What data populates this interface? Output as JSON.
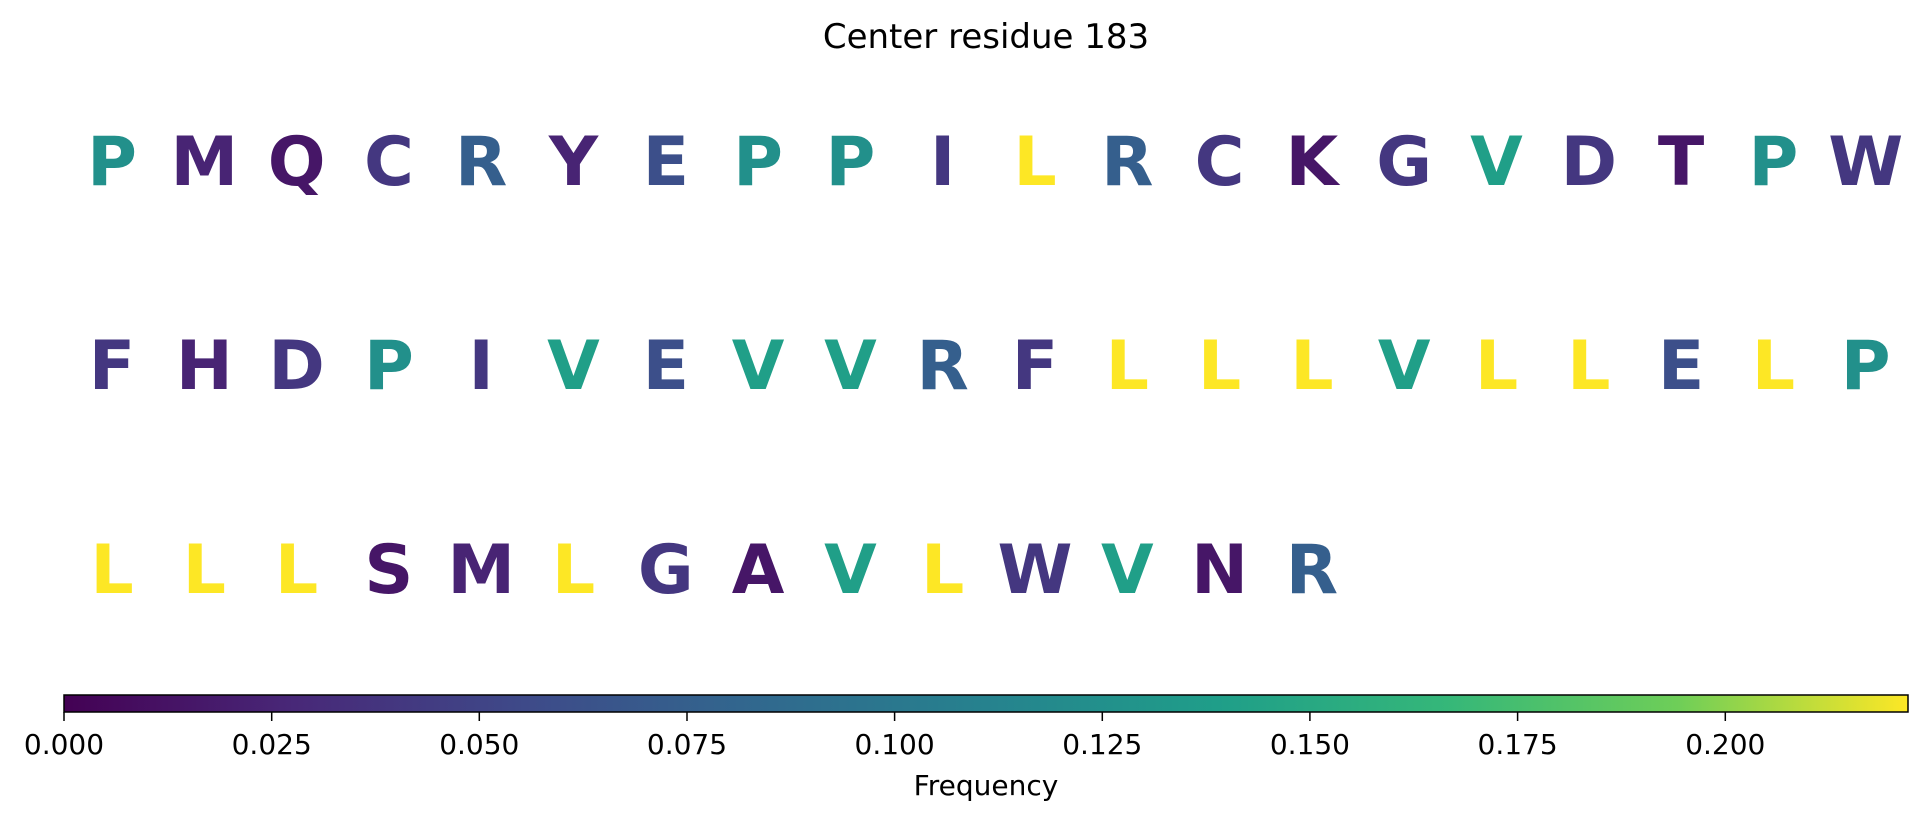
{
  "chart_data": {
    "type": "sequence-logo",
    "title": "Center residue 183",
    "residues": [
      {
        "letter": "P",
        "frequency": 0.125
      },
      {
        "letter": "M",
        "frequency": 0.025
      },
      {
        "letter": "Q",
        "frequency": 0.015
      },
      {
        "letter": "C",
        "frequency": 0.04
      },
      {
        "letter": "R",
        "frequency": 0.075
      },
      {
        "letter": "Y",
        "frequency": 0.025
      },
      {
        "letter": "E",
        "frequency": 0.06
      },
      {
        "letter": "P",
        "frequency": 0.125
      },
      {
        "letter": "P",
        "frequency": 0.125
      },
      {
        "letter": "I",
        "frequency": 0.04
      },
      {
        "letter": "L",
        "frequency": 0.222
      },
      {
        "letter": "R",
        "frequency": 0.075
      },
      {
        "letter": "C",
        "frequency": 0.04
      },
      {
        "letter": "K",
        "frequency": 0.015
      },
      {
        "letter": "G",
        "frequency": 0.04
      },
      {
        "letter": "V",
        "frequency": 0.14
      },
      {
        "letter": "D",
        "frequency": 0.04
      },
      {
        "letter": "T",
        "frequency": 0.015
      },
      {
        "letter": "P",
        "frequency": 0.125
      },
      {
        "letter": "W",
        "frequency": 0.04
      },
      {
        "letter": "F",
        "frequency": 0.04
      },
      {
        "letter": "H",
        "frequency": 0.025
      },
      {
        "letter": "D",
        "frequency": 0.04
      },
      {
        "letter": "P",
        "frequency": 0.125
      },
      {
        "letter": "I",
        "frequency": 0.04
      },
      {
        "letter": "V",
        "frequency": 0.14
      },
      {
        "letter": "E",
        "frequency": 0.06
      },
      {
        "letter": "V",
        "frequency": 0.14
      },
      {
        "letter": "V",
        "frequency": 0.14
      },
      {
        "letter": "R",
        "frequency": 0.075
      },
      {
        "letter": "F",
        "frequency": 0.04
      },
      {
        "letter": "L",
        "frequency": 0.222
      },
      {
        "letter": "L",
        "frequency": 0.222
      },
      {
        "letter": "L",
        "frequency": 0.222
      },
      {
        "letter": "V",
        "frequency": 0.14
      },
      {
        "letter": "L",
        "frequency": 0.222
      },
      {
        "letter": "L",
        "frequency": 0.222
      },
      {
        "letter": "E",
        "frequency": 0.06
      },
      {
        "letter": "L",
        "frequency": 0.222
      },
      {
        "letter": "P",
        "frequency": 0.125
      },
      {
        "letter": "L",
        "frequency": 0.222
      },
      {
        "letter": "L",
        "frequency": 0.222
      },
      {
        "letter": "L",
        "frequency": 0.222
      },
      {
        "letter": "S",
        "frequency": 0.015
      },
      {
        "letter": "M",
        "frequency": 0.025
      },
      {
        "letter": "L",
        "frequency": 0.222
      },
      {
        "letter": "G",
        "frequency": 0.04
      },
      {
        "letter": "A",
        "frequency": 0.015
      },
      {
        "letter": "V",
        "frequency": 0.14
      },
      {
        "letter": "L",
        "frequency": 0.222
      },
      {
        "letter": "W",
        "frequency": 0.04
      },
      {
        "letter": "V",
        "frequency": 0.14
      },
      {
        "letter": "N",
        "frequency": 0.015
      },
      {
        "letter": "R",
        "frequency": 0.075
      }
    ],
    "letters_per_row": 20,
    "colorbar": {
      "label": "Frequency",
      "colormap": "viridis",
      "range": [
        0,
        0.222
      ],
      "ticks": [
        0,
        0.025,
        0.05,
        0.075,
        0.1,
        0.125,
        0.15,
        0.175,
        0.2
      ],
      "tick_labels": [
        "0.000",
        "0.025",
        "0.050",
        "0.075",
        "0.100",
        "0.125",
        "0.150",
        "0.175",
        "0.200"
      ],
      "orientation": "horizontal",
      "placement": "bottom"
    }
  }
}
